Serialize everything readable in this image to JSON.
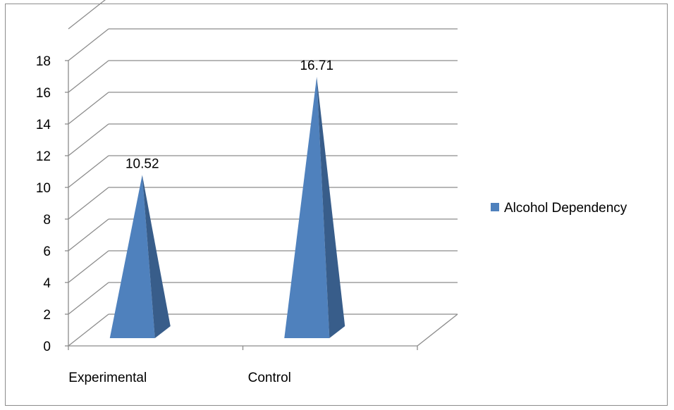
{
  "chart_data": {
    "type": "bar",
    "style": "3d-pyramid",
    "categories": [
      "Experimental",
      "Control"
    ],
    "series": [
      {
        "name": "Alcohol Dependency",
        "values": [
          10.52,
          16.71
        ],
        "color": "#4f81bd"
      }
    ],
    "data_labels": [
      "10.52",
      "16.71"
    ],
    "ylim": [
      0,
      18
    ],
    "yticks": [
      0,
      2,
      4,
      6,
      8,
      10,
      12,
      14,
      16,
      18
    ],
    "ytick_labels": [
      "0",
      "2",
      "4",
      "6",
      "8",
      "10",
      "12",
      "14",
      "16",
      "18"
    ],
    "grid": true,
    "legend": "right",
    "title": "",
    "xlabel": "",
    "ylabel": ""
  },
  "legend": {
    "label": "Alcohol Dependency"
  }
}
